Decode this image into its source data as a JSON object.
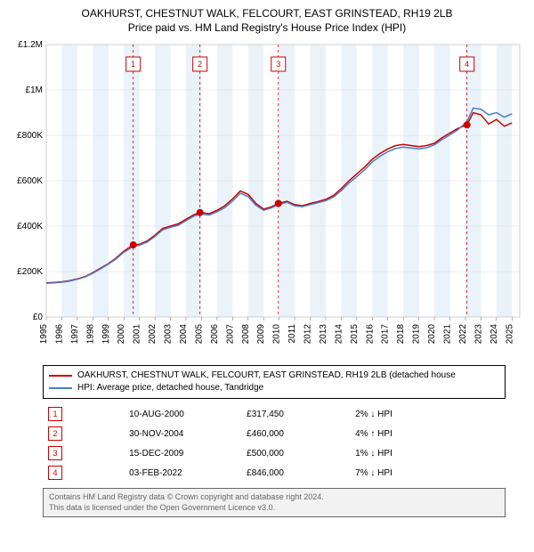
{
  "title": "OAKHURST, CHESTNUT WALK, FELCOURT, EAST GRINSTEAD, RH19 2LB",
  "subtitle": "Price paid vs. HM Land Registry's House Price Index (HPI)",
  "chart": {
    "type": "line",
    "background_color": "#ffffff",
    "grid_color": "#d9d9d9",
    "band_color": "#eaf2fa",
    "xlim": [
      1995,
      2025.5
    ],
    "ylim": [
      0,
      1200000
    ],
    "ytick_step": 200000,
    "yticks": [
      "£0",
      "£200K",
      "£400K",
      "£600K",
      "£800K",
      "£1M",
      "£1.2M"
    ],
    "xticks": [
      1995,
      1996,
      1997,
      1998,
      1999,
      2000,
      2001,
      2002,
      2003,
      2004,
      2005,
      2006,
      2007,
      2008,
      2009,
      2010,
      2011,
      2012,
      2013,
      2014,
      2015,
      2016,
      2017,
      2018,
      2019,
      2020,
      2021,
      2022,
      2023,
      2024,
      2025
    ],
    "tick_fontsize": 10,
    "series": [
      {
        "name": "red",
        "color": "#cc0000",
        "width": 1.5,
        "points": [
          [
            1995.0,
            150000
          ],
          [
            1995.5,
            152000
          ],
          [
            1996.0,
            155000
          ],
          [
            1996.5,
            160000
          ],
          [
            1997.0,
            168000
          ],
          [
            1997.5,
            178000
          ],
          [
            1998.0,
            195000
          ],
          [
            1998.5,
            215000
          ],
          [
            1999.0,
            235000
          ],
          [
            1999.5,
            260000
          ],
          [
            2000.0,
            290000
          ],
          [
            2000.6,
            317450
          ],
          [
            2001.0,
            320000
          ],
          [
            2001.5,
            335000
          ],
          [
            2002.0,
            360000
          ],
          [
            2002.5,
            390000
          ],
          [
            2003.0,
            400000
          ],
          [
            2003.5,
            410000
          ],
          [
            2004.0,
            430000
          ],
          [
            2004.5,
            450000
          ],
          [
            2004.9,
            460000
          ],
          [
            2005.5,
            455000
          ],
          [
            2006.0,
            470000
          ],
          [
            2006.5,
            490000
          ],
          [
            2007.0,
            520000
          ],
          [
            2007.5,
            555000
          ],
          [
            2008.0,
            540000
          ],
          [
            2008.5,
            500000
          ],
          [
            2009.0,
            475000
          ],
          [
            2009.5,
            485000
          ],
          [
            2009.95,
            500000
          ],
          [
            2010.5,
            510000
          ],
          [
            2011.0,
            495000
          ],
          [
            2011.5,
            490000
          ],
          [
            2012.0,
            500000
          ],
          [
            2012.5,
            508000
          ],
          [
            2013.0,
            518000
          ],
          [
            2013.5,
            535000
          ],
          [
            2014.0,
            565000
          ],
          [
            2014.5,
            600000
          ],
          [
            2015.0,
            630000
          ],
          [
            2015.5,
            660000
          ],
          [
            2016.0,
            695000
          ],
          [
            2016.5,
            720000
          ],
          [
            2017.0,
            740000
          ],
          [
            2017.5,
            755000
          ],
          [
            2018.0,
            760000
          ],
          [
            2018.5,
            755000
          ],
          [
            2019.0,
            750000
          ],
          [
            2019.5,
            755000
          ],
          [
            2020.0,
            765000
          ],
          [
            2020.5,
            790000
          ],
          [
            2021.0,
            810000
          ],
          [
            2021.5,
            830000
          ],
          [
            2022.1,
            846000
          ],
          [
            2022.5,
            900000
          ],
          [
            2023.0,
            890000
          ],
          [
            2023.5,
            850000
          ],
          [
            2024.0,
            870000
          ],
          [
            2024.5,
            840000
          ],
          [
            2025.0,
            855000
          ]
        ]
      },
      {
        "name": "blue",
        "color": "#4a7ec8",
        "width": 1.5,
        "points": [
          [
            1995.0,
            148000
          ],
          [
            1995.5,
            150000
          ],
          [
            1996.0,
            153000
          ],
          [
            1996.5,
            158000
          ],
          [
            1997.0,
            166000
          ],
          [
            1997.5,
            176000
          ],
          [
            1998.0,
            192000
          ],
          [
            1998.5,
            212000
          ],
          [
            1999.0,
            232000
          ],
          [
            1999.5,
            256000
          ],
          [
            2000.0,
            285000
          ],
          [
            2000.6,
            310000
          ],
          [
            2001.0,
            316000
          ],
          [
            2001.5,
            330000
          ],
          [
            2002.0,
            354000
          ],
          [
            2002.5,
            384000
          ],
          [
            2003.0,
            395000
          ],
          [
            2003.5,
            404000
          ],
          [
            2004.0,
            424000
          ],
          [
            2004.5,
            444000
          ],
          [
            2004.9,
            453000
          ],
          [
            2005.5,
            449000
          ],
          [
            2006.0,
            463000
          ],
          [
            2006.5,
            482000
          ],
          [
            2007.0,
            510000
          ],
          [
            2007.5,
            545000
          ],
          [
            2008.0,
            530000
          ],
          [
            2008.5,
            492000
          ],
          [
            2009.0,
            470000
          ],
          [
            2009.5,
            480000
          ],
          [
            2009.95,
            494000
          ],
          [
            2010.5,
            505000
          ],
          [
            2011.0,
            490000
          ],
          [
            2011.5,
            486000
          ],
          [
            2012.0,
            495000
          ],
          [
            2012.5,
            503000
          ],
          [
            2013.0,
            512000
          ],
          [
            2013.5,
            528000
          ],
          [
            2014.0,
            556000
          ],
          [
            2014.5,
            590000
          ],
          [
            2015.0,
            618000
          ],
          [
            2015.5,
            648000
          ],
          [
            2016.0,
            683000
          ],
          [
            2016.5,
            708000
          ],
          [
            2017.0,
            728000
          ],
          [
            2017.5,
            742000
          ],
          [
            2018.0,
            748000
          ],
          [
            2018.5,
            744000
          ],
          [
            2019.0,
            740000
          ],
          [
            2019.5,
            745000
          ],
          [
            2020.0,
            758000
          ],
          [
            2020.5,
            782000
          ],
          [
            2021.0,
            802000
          ],
          [
            2021.5,
            824000
          ],
          [
            2022.1,
            860000
          ],
          [
            2022.5,
            920000
          ],
          [
            2023.0,
            915000
          ],
          [
            2023.5,
            890000
          ],
          [
            2024.0,
            900000
          ],
          [
            2024.5,
            880000
          ],
          [
            2025.0,
            895000
          ]
        ]
      }
    ],
    "markers": [
      {
        "n": "1",
        "x": 2000.6,
        "y": 317450
      },
      {
        "n": "2",
        "x": 2004.9,
        "y": 460000
      },
      {
        "n": "3",
        "x": 2009.95,
        "y": 500000
      },
      {
        "n": "4",
        "x": 2022.1,
        "y": 846000
      }
    ],
    "marker_color": "#cc0000",
    "marker_line_color": "#cc0000",
    "marker_badge_border": "#cc0000",
    "marker_badge_bg": "#ffffff",
    "marker_badge_fontsize": 9
  },
  "legend": {
    "items": [
      {
        "color": "#cc0000",
        "label": "OAKHURST, CHESTNUT WALK, FELCOURT, EAST GRINSTEAD, RH19 2LB (detached house"
      },
      {
        "color": "#4a7ec8",
        "label": "HPI: Average price, detached house, Tandridge"
      }
    ]
  },
  "transactions": [
    {
      "n": "1",
      "date": "10-AUG-2000",
      "price": "£317,450",
      "diff": "2% ↓ HPI"
    },
    {
      "n": "2",
      "date": "30-NOV-2004",
      "price": "£460,000",
      "diff": "4% ↑ HPI"
    },
    {
      "n": "3",
      "date": "15-DEC-2009",
      "price": "£500,000",
      "diff": "1% ↓ HPI"
    },
    {
      "n": "4",
      "date": "03-FEB-2022",
      "price": "£846,000",
      "diff": "7% ↓ HPI"
    }
  ],
  "attribution": {
    "line1": "Contains HM Land Registry data © Crown copyright and database right 2024.",
    "line2": "This data is licensed under the Open Government Licence v3.0."
  }
}
